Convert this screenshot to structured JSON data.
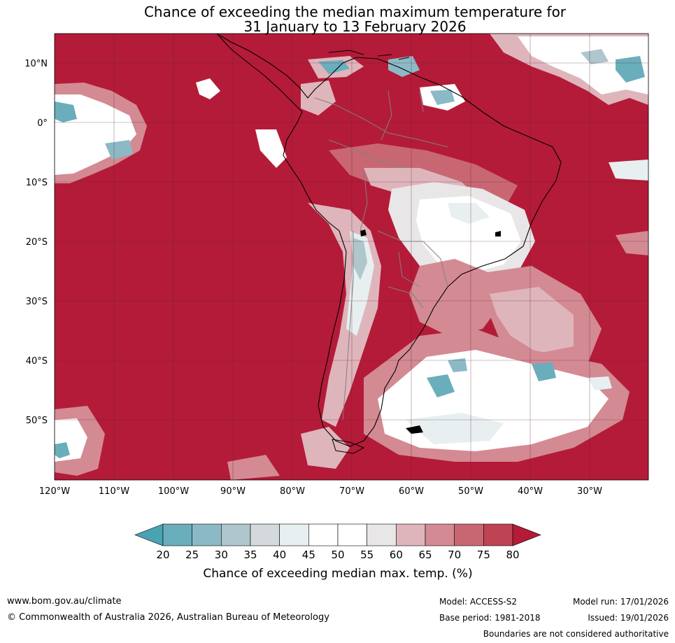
{
  "title": {
    "line1": "Chance of exceeding the median maximum temperature for",
    "line2": "31 January to 13 February 2026"
  },
  "lat_labels": [
    "10°N",
    "0°",
    "10°S",
    "20°S",
    "30°S",
    "40°S",
    "50°S"
  ],
  "lon_labels": [
    "120°W",
    "110°W",
    "100°W",
    "90°W",
    "80°W",
    "70°W",
    "60°W",
    "50°W",
    "40°W",
    "30°W"
  ],
  "colorbar": {
    "ticks": [
      "20",
      "25",
      "30",
      "35",
      "40",
      "45",
      "50",
      "55",
      "60",
      "65",
      "70",
      "75",
      "80"
    ],
    "colors": [
      "#4aa3b2",
      "#6aaebb",
      "#8bbac6",
      "#aec6cc",
      "#d4dadb",
      "#e8eff1",
      "#ffffff",
      "#ffffff",
      "#e9e6e7",
      "#dfb5bc",
      "#d38a93",
      "#c86772",
      "#bf4453",
      "#b41b38"
    ],
    "label": "Chance of exceeding median max. temp. (%)"
  },
  "footer": {
    "website": "www.bom.gov.au/climate",
    "copyright": "© Commonwealth of Australia 2026, Australian Bureau of Meteorology",
    "model": "Model: ACCESS-S2",
    "base_period": "Base period: 1981-2018",
    "model_run": "Model run: 17/01/2026",
    "issued": "Issued: 19/01/2026",
    "disclaimer": "Boundaries are not considered authoritative"
  },
  "colors": {
    "ocean_dominant": "#b41b38",
    "coast": "#000000",
    "border": "#808080"
  }
}
